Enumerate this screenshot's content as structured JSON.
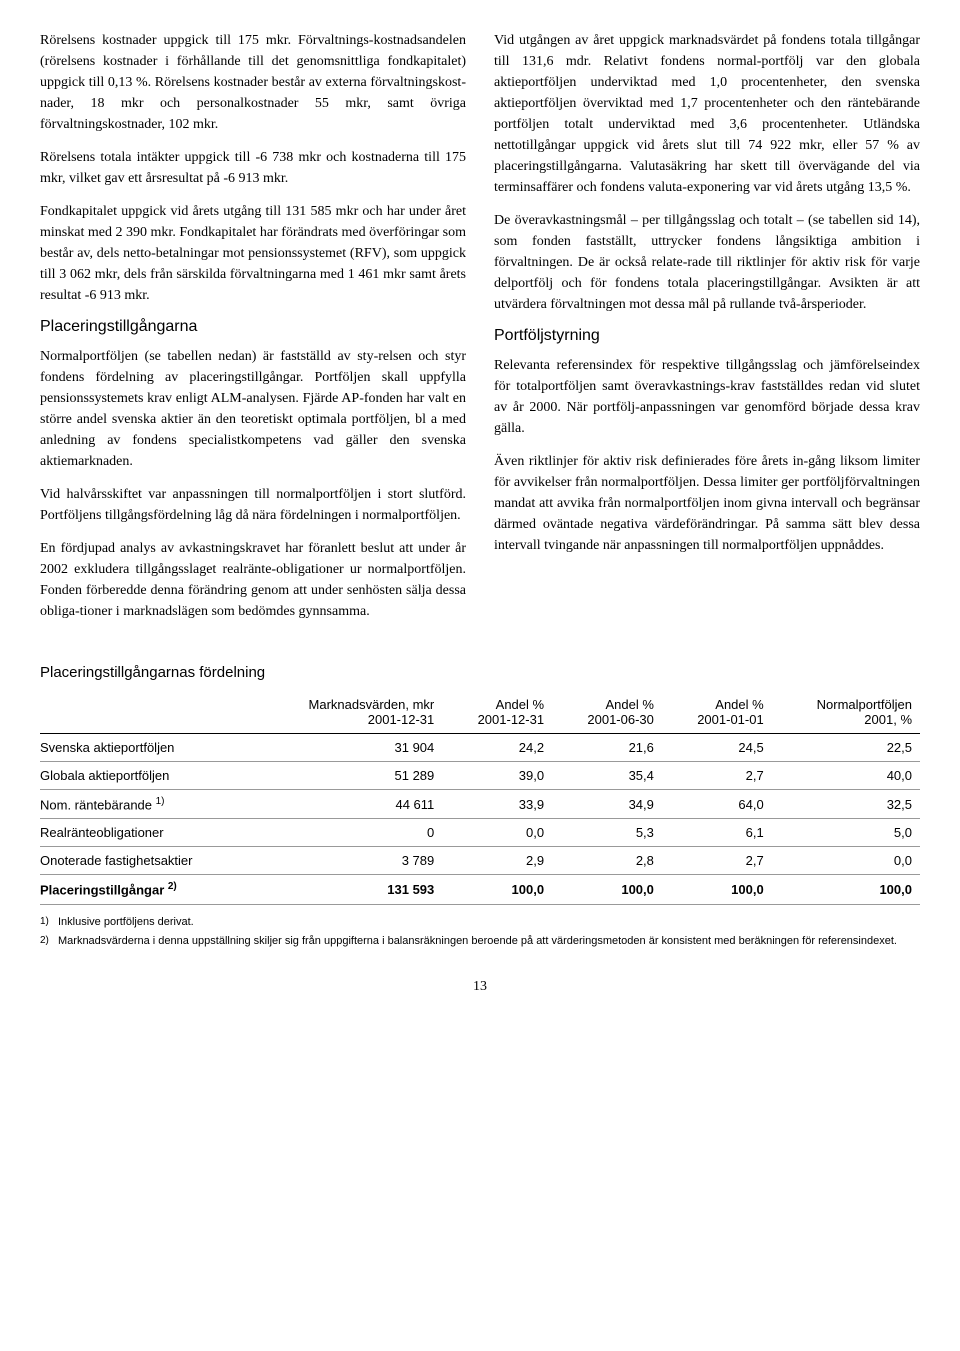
{
  "left_column": {
    "p1": "Rörelsens kostnader uppgick till 175 mkr. Förvaltnings-kostnadsandelen (rörelsens kostnader i förhållande till det genomsnittliga fondkapitalet) uppgick till 0,13 %. Rörelsens kostnader består av externa förvaltningskost-nader, 18 mkr och personalkostnader 55 mkr, samt övriga förvaltningskostnader, 102 mkr.",
    "p2": "Rörelsens totala intäkter uppgick till -6 738 mkr och kostnaderna till 175 mkr, vilket gav ett årsresultat på -6 913 mkr.",
    "p3": "Fondkapitalet uppgick vid årets utgång till 131 585 mkr och har under året minskat med 2 390 mkr. Fondkapitalet har förändrats med överföringar som består av, dels netto-betalningar mot pensionssystemet (RFV), som uppgick till 3 062 mkr, dels från särskilda förvaltningarna med 1 461 mkr samt årets resultat -6 913 mkr.",
    "h1": "Placeringstillgångarna",
    "p4": "Normalportföljen (se tabellen nedan) är fastställd av sty-relsen och styr fondens fördelning av placeringstillgångar. Portföljen skall uppfylla pensionssystemets krav enligt ALM-analysen. Fjärde AP-fonden har valt en större andel svenska aktier än den teoretiskt optimala portföljen, bl a med anledning av fondens specialistkompetens vad gäller den svenska aktiemarknaden.",
    "p5": "Vid halvårsskiftet var anpassningen till normalportföljen i stort slutförd. Portföljens tillgångsfördelning låg då nära fördelningen i normalportföljen.",
    "p6": "En fördjupad analys av avkastningskravet har föranlett beslut att under år 2002 exkludera tillgångsslaget realränte-obligationer ur normalportföljen. Fonden förberedde denna förändring genom att under senhösten sälja dessa obliga-tioner i marknadslägen som bedömdes gynnsamma."
  },
  "right_column": {
    "p1": "Vid utgången av året uppgick marknadsvärdet på fondens totala tillgångar till 131,6 mdr. Relativt fondens normal-portfölj var den globala aktieportföljen underviktad med 1,0 procentenheter, den svenska aktieportföljen överviktad med 1,7 procentenheter och den räntebärande portföljen totalt underviktad med 3,6 procentenheter. Utländska nettotillgångar uppgick vid årets slut till 74 922 mkr, eller 57 % av placeringstillgångarna. Valutasäkring har skett till övervägande del via terminsaffärer och fondens valuta-exponering var vid årets utgång 13,5 %.",
    "p2": "De överavkastningsmål – per tillgångsslag och totalt – (se tabellen sid 14), som fonden fastställt, uttrycker fondens långsiktiga ambition i förvaltningen. De är också relate-rade till riktlinjer för aktiv risk för varje delportfölj och för fondens totala placeringstillgångar. Avsikten är att utvärdera förvaltningen mot dessa mål på rullande två-årsperioder.",
    "h1": "Portföljstyrning",
    "p3": "Relevanta referensindex för respektive tillgångsslag och jämförelseindex för totalportföljen samt överavkastnings-krav fastställdes redan vid slutet av år 2000. När portfölj-anpassningen var genomförd började dessa krav gälla.",
    "p4": "Även riktlinjer för aktiv risk definierades före årets in-gång liksom limiter för avvikelser från normalportföljen. Dessa limiter ger portföljförvaltningen mandat att avvika från normalportföljen inom givna intervall och begränsar därmed oväntade negativa värdeförändringar. På samma sätt blev dessa intervall tvingande när anpassningen till normalportföljen uppnåddes."
  },
  "table": {
    "title": "Placeringstillgångarnas fördelning",
    "headers": {
      "c0": "",
      "c1a": "Marknadsvärden, mkr",
      "c1b": "2001-12-31",
      "c2a": "Andel %",
      "c2b": "2001-12-31",
      "c3a": "Andel %",
      "c3b": "2001-06-30",
      "c4a": "Andel %",
      "c4b": "2001-01-01",
      "c5a": "Normalportföljen",
      "c5b": "2001, %"
    },
    "rows": [
      {
        "label": "Svenska aktieportföljen",
        "c1": "31 904",
        "c2": "24,2",
        "c3": "21,6",
        "c4": "24,5",
        "c5": "22,5"
      },
      {
        "label": "Globala aktieportföljen",
        "c1": "51 289",
        "c2": "39,0",
        "c3": "35,4",
        "c4": "2,7",
        "c5": "40,0"
      },
      {
        "label": "Nom. räntebärande",
        "sup": "1)",
        "c1": "44 611",
        "c2": "33,9",
        "c3": "34,9",
        "c4": "64,0",
        "c5": "32,5"
      },
      {
        "label": "Realränteobligationer",
        "c1": "0",
        "c2": "0,0",
        "c3": "5,3",
        "c4": "6,1",
        "c5": "5,0"
      },
      {
        "label": "Onoterade fastighetsaktier",
        "c1": "3 789",
        "c2": "2,9",
        "c3": "2,8",
        "c4": "2,7",
        "c5": "0,0"
      }
    ],
    "total": {
      "label": "Placeringstillgångar",
      "sup": "2)",
      "c1": "131 593",
      "c2": "100,0",
      "c3": "100,0",
      "c4": "100,0",
      "c5": "100,0"
    },
    "footnotes": [
      {
        "num": "1)",
        "text": "Inklusive portföljens derivat."
      },
      {
        "num": "2)",
        "text": "Marknadsvärderna i denna uppställning skiljer sig från uppgifterna i balansräkningen beroende på att värderingsmetoden är konsistent med beräkningen för referensindexet."
      }
    ]
  },
  "page_number": "13"
}
